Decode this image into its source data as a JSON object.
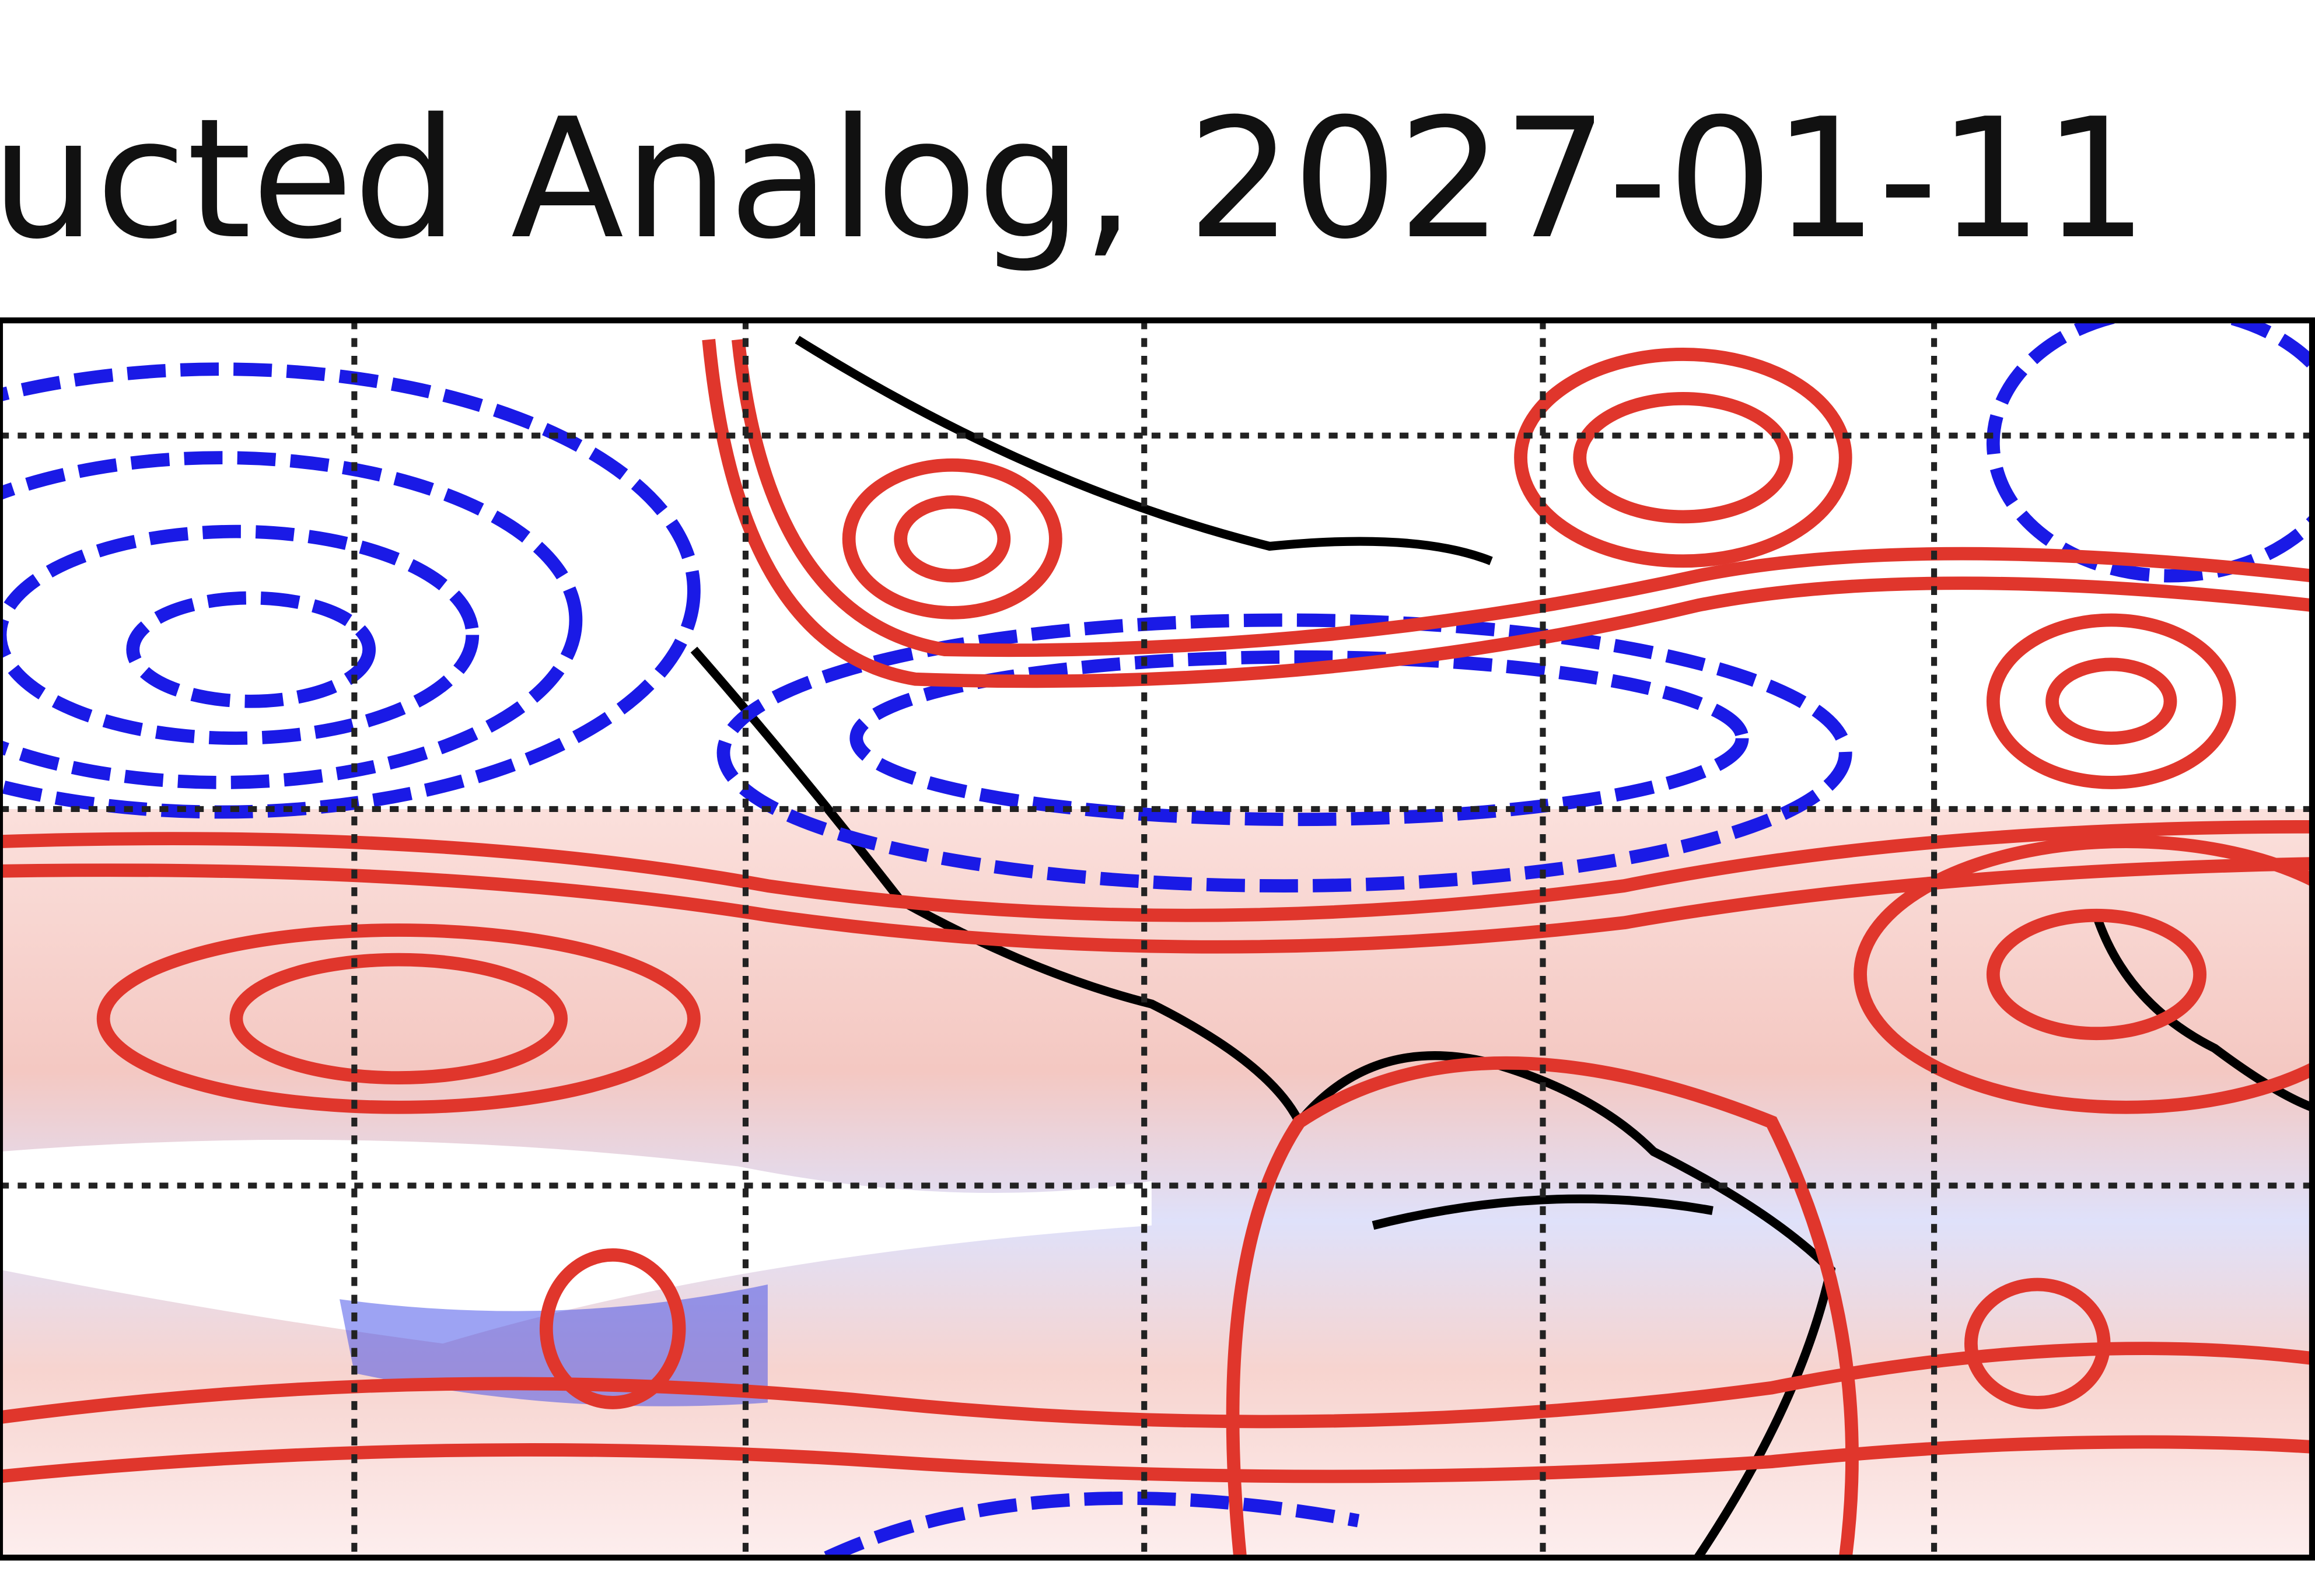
{
  "header": {
    "title": "ucted Analog, 2027-01-11"
  }
}
